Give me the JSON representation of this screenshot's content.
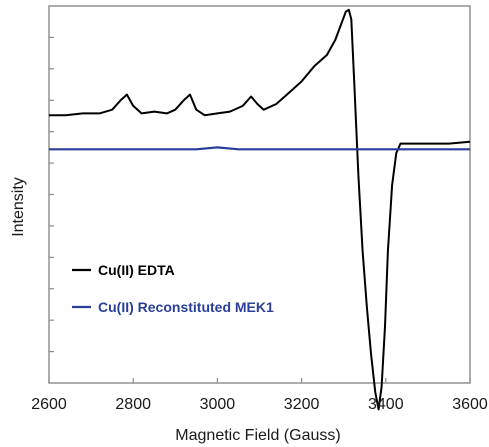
{
  "chart_data": {
    "type": "line",
    "title": "",
    "xlabel": "Magnetic Field (Gauss)",
    "ylabel": "Intensity",
    "xlim": [
      2600,
      3600
    ],
    "ylim": [
      -1,
      1
    ],
    "xticks": [
      "2600",
      "2800",
      "3000",
      "3200",
      "3400",
      "3600"
    ],
    "xtick_values": [
      2600,
      2800,
      3000,
      3200,
      3400,
      3600
    ],
    "yticks_count": 11,
    "grid": false,
    "legend_position": "lower-left",
    "series": [
      {
        "name": "Cu(II) EDTA",
        "color": "#000000",
        "x": [
          2600,
          2640,
          2680,
          2720,
          2750,
          2770,
          2785,
          2800,
          2820,
          2850,
          2880,
          2900,
          2920,
          2935,
          2950,
          2970,
          3000,
          3030,
          3060,
          3080,
          3095,
          3110,
          3140,
          3170,
          3200,
          3230,
          3260,
          3280,
          3295,
          3305,
          3312,
          3318,
          3325,
          3335,
          3345,
          3355,
          3365,
          3375,
          3383,
          3390,
          3398,
          3405,
          3415,
          3425,
          3435,
          3450,
          3500,
          3550,
          3600
        ],
        "y": [
          0.42,
          0.42,
          0.43,
          0.43,
          0.45,
          0.5,
          0.53,
          0.47,
          0.43,
          0.44,
          0.43,
          0.45,
          0.5,
          0.53,
          0.45,
          0.42,
          0.43,
          0.44,
          0.47,
          0.52,
          0.48,
          0.45,
          0.48,
          0.54,
          0.6,
          0.68,
          0.74,
          0.82,
          0.91,
          0.97,
          0.98,
          0.93,
          0.6,
          0.1,
          -0.3,
          -0.6,
          -0.85,
          -1.05,
          -1.14,
          -1.02,
          -0.7,
          -0.3,
          0.05,
          0.22,
          0.27,
          0.27,
          0.27,
          0.27,
          0.28
        ]
      },
      {
        "name": "Cu(II) Reconstituted MEK1",
        "color": "#2a3f9a",
        "x": [
          2600,
          2650,
          2700,
          2750,
          2800,
          2850,
          2900,
          2950,
          3000,
          3050,
          3100,
          3150,
          3200,
          3250,
          3300,
          3350,
          3400,
          3450,
          3500,
          3550,
          3600
        ],
        "y": [
          0.24,
          0.24,
          0.24,
          0.24,
          0.24,
          0.24,
          0.24,
          0.24,
          0.25,
          0.24,
          0.24,
          0.24,
          0.24,
          0.24,
          0.24,
          0.24,
          0.24,
          0.24,
          0.24,
          0.24,
          0.24
        ]
      }
    ]
  }
}
